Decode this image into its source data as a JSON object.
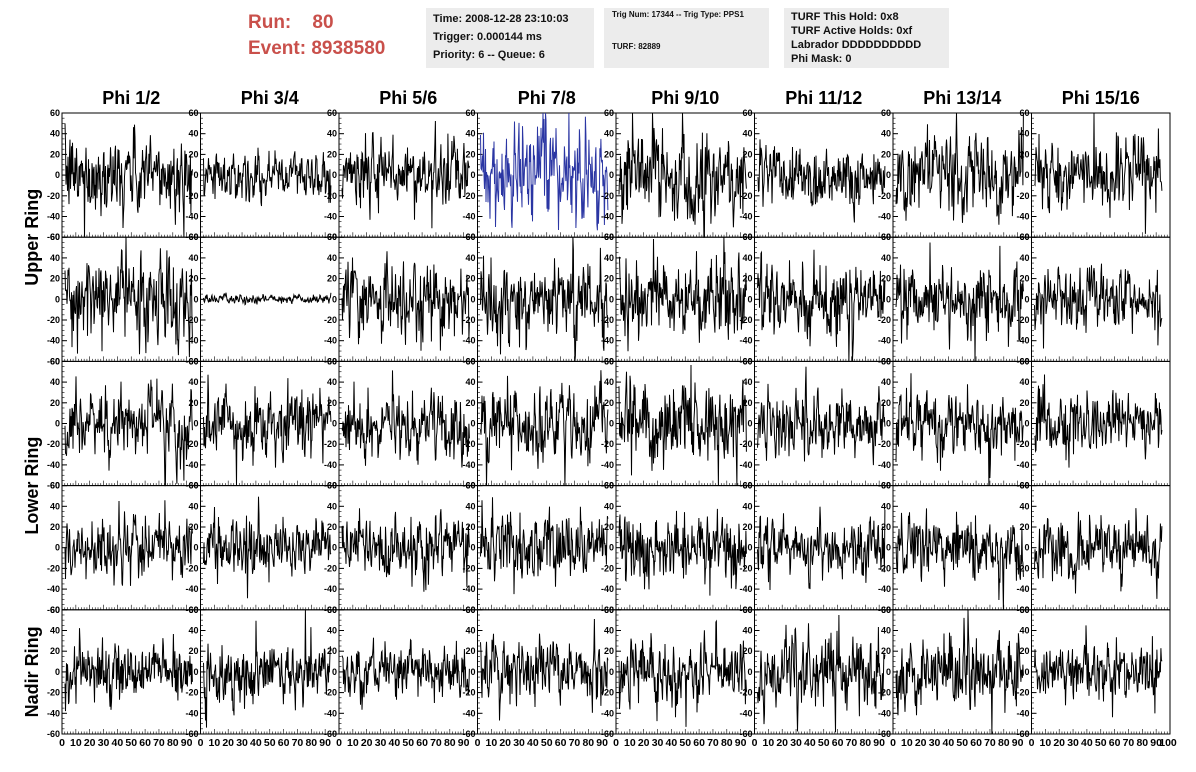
{
  "header": {
    "run_label": "Run:",
    "run_value": "80",
    "event_label": "Event:",
    "event_value": "8938580"
  },
  "info_time": {
    "time": "Time: 2008-12-28 23:10:03",
    "trigger": "Trigger: 0.000144 ms",
    "priority": "Priority: 6 -- Queue: 6"
  },
  "info_trig": {
    "trig": "Trig Num: 17344 -- Trig Type: PPS1",
    "turf": "TURF: 82889"
  },
  "info_turf": {
    "hold": "TURF This Hold: 0x8",
    "active": "TURF Active Holds: 0xf",
    "labrador": "Labrador DDDDDDDDDD",
    "phimask": "Phi Mask: 0"
  },
  "chart_data": {
    "type": "line",
    "columns": [
      "Phi 1/2",
      "Phi 3/4",
      "Phi 5/6",
      "Phi 7/8",
      "Phi 9/10",
      "Phi 11/12",
      "Phi 13/14",
      "Phi 15/16"
    ],
    "rows": [
      {
        "label": "Upper Ring",
        "panels": 2
      },
      {
        "label": "Lower Ring",
        "panels": 2
      },
      {
        "label": "Nadir Ring",
        "panels": 1
      }
    ],
    "ylim": [
      -60,
      60
    ],
    "yticks": [
      -60,
      -40,
      -20,
      0,
      20,
      40,
      60
    ],
    "xlim": [
      0,
      100
    ],
    "xticks": [
      0,
      10,
      20,
      30,
      40,
      50,
      60,
      70,
      80,
      90
    ],
    "last_xtick": "100",
    "samples_per_trace": 256,
    "trace_color": "#000000",
    "highlight_color": "#2b36a3",
    "highlight": {
      "row": 0,
      "col": 3
    },
    "amplitudes": [
      [
        18,
        10,
        15,
        20,
        20,
        15,
        17,
        16
      ],
      [
        20,
        2,
        18,
        18,
        17,
        18,
        15,
        14
      ],
      [
        16,
        15,
        15,
        17,
        18,
        15,
        14,
        13
      ],
      [
        14,
        14,
        14,
        16,
        15,
        13,
        15,
        14
      ],
      [
        13,
        13,
        13,
        14,
        15,
        16,
        17,
        13
      ]
    ]
  }
}
